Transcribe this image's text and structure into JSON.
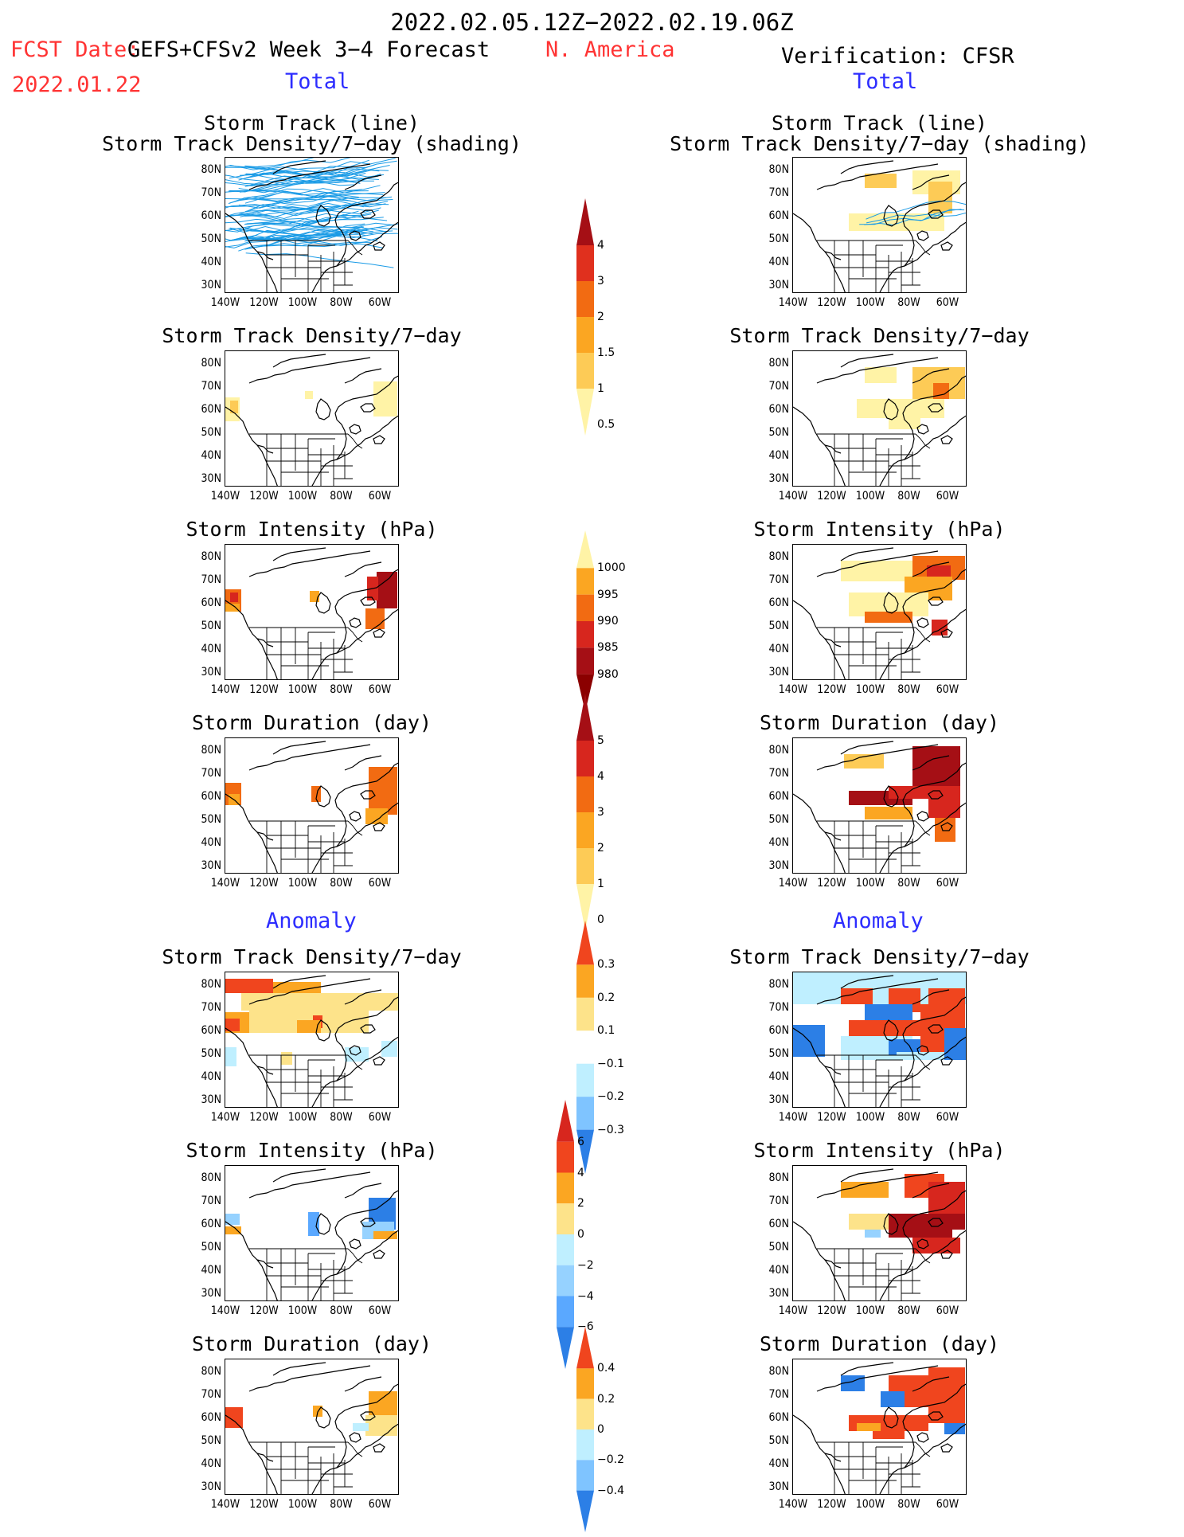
{
  "header": {
    "period": "2022.02.05.12Z−2022.02.19.06Z",
    "fcst_label": "FCST Date:",
    "fcst_model": "GEFS+CFSv2 Week 3−4 Forecast",
    "fcst_date": "2022.01.22",
    "region": "N. America",
    "verification": "Verification: CFSR",
    "total_left": "Total",
    "total_right": "Total",
    "anomaly_left": "Anomaly",
    "anomaly_right": "Anomaly"
  },
  "panel_titles": {
    "track_line": "Storm Track (line)",
    "track_shading": "Storm Track Density/7−day (shading)",
    "density": "Storm Track Density/7−day",
    "intensity": "Storm Intensity (hPa)",
    "duration": "Storm Duration (day)"
  },
  "axes": {
    "lat_labels": [
      "80N",
      "70N",
      "60N",
      "50N",
      "40N",
      "30N"
    ],
    "lon_labels": [
      "140W",
      "120W",
      "100W",
      "80W",
      "60W"
    ]
  },
  "colorbars": [
    {
      "id": "density_total",
      "labels": [
        "4",
        "3",
        "2",
        "1.5",
        "1",
        "0.5"
      ],
      "colors": [
        "#a50f15",
        "#e0301e",
        "#f26b12",
        "#fba622",
        "#fdcb56",
        "#fff3a6"
      ]
    },
    {
      "id": "intensity_total",
      "labels": [
        "1000",
        "995",
        "990",
        "985",
        "980"
      ],
      "colors": [
        "#fff3a6",
        "#fba622",
        "#f26b12",
        "#d7261e",
        "#a50f15",
        "#8b0000"
      ]
    },
    {
      "id": "duration_total",
      "labels": [
        "5",
        "4",
        "3",
        "2",
        "1",
        "0"
      ],
      "colors": [
        "#a50f15",
        "#d7261e",
        "#f26b12",
        "#fba622",
        "#fdcb56",
        "#fff3a6"
      ]
    },
    {
      "id": "density_anom",
      "labels": [
        "0.3",
        "0.2",
        "0.1",
        "−0.1",
        "−0.2",
        "−0.3"
      ],
      "colors": [
        "#f0451e",
        "#fba622",
        "#fde38a",
        "#ffffff",
        "#bfefff",
        "#7fc4ff",
        "#2c7fe6"
      ]
    },
    {
      "id": "intensity_anom",
      "labels": [
        "6",
        "4",
        "2",
        "0",
        "−2",
        "−4",
        "−6"
      ],
      "colors": [
        "#d7261e",
        "#f0451e",
        "#fba622",
        "#fde38a",
        "#bfefff",
        "#96d2ff",
        "#5aa8ff",
        "#2c7fe6"
      ]
    },
    {
      "id": "duration_anom",
      "labels": [
        "0.4",
        "0.2",
        "0",
        "−0.2",
        "−0.4"
      ],
      "colors": [
        "#f0451e",
        "#fba622",
        "#fde38a",
        "#bfefff",
        "#7fc4ff",
        "#2c7fe6"
      ]
    }
  ],
  "colors": {
    "track_line": "#1a9be6",
    "coast": "#000000"
  }
}
